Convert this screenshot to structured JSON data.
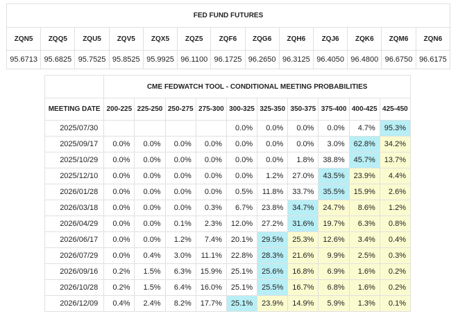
{
  "futures": {
    "title": "FED FUND FUTURES",
    "contracts": [
      "ZQN5",
      "ZQQ5",
      "ZQU5",
      "ZQV5",
      "ZQX5",
      "ZQZ5",
      "ZQF6",
      "ZQG6",
      "ZQH6",
      "ZQJ6",
      "ZQK6",
      "ZQM6",
      "ZQN6"
    ],
    "prices": [
      "95.6713",
      "95.6825",
      "95.7525",
      "95.8525",
      "95.9925",
      "96.1100",
      "96.1725",
      "96.2650",
      "96.3125",
      "96.4050",
      "96.4800",
      "96.6750",
      "96.6175"
    ]
  },
  "fedwatch": {
    "title": "CME FEDWATCH TOOL - CONDITIONAL MEETING PROBABILITIES",
    "date_header": "MEETING DATE",
    "ranges": [
      "200-225",
      "225-250",
      "250-275",
      "275-300",
      "300-325",
      "325-350",
      "350-375",
      "375-400",
      "400-425",
      "425-450"
    ],
    "rows": [
      {
        "date": "2025/07/30",
        "values": [
          "",
          "",
          "",
          "",
          "0.0%",
          "0.0%",
          "0.0%",
          "0.0%",
          "4.7%",
          "95.3%"
        ],
        "shade": [
          "p",
          "p",
          "p",
          "p",
          "p",
          "p",
          "p",
          "p",
          "p",
          "h"
        ]
      },
      {
        "date": "2025/09/17",
        "values": [
          "0.0%",
          "0.0%",
          "0.0%",
          "0.0%",
          "0.0%",
          "0.0%",
          "0.0%",
          "3.0%",
          "62.8%",
          "34.2%"
        ],
        "shade": [
          "p",
          "p",
          "p",
          "p",
          "p",
          "p",
          "p",
          "p",
          "h",
          "m"
        ]
      },
      {
        "date": "2025/10/29",
        "values": [
          "0.0%",
          "0.0%",
          "0.0%",
          "0.0%",
          "0.0%",
          "0.0%",
          "1.8%",
          "38.8%",
          "45.7%",
          "13.7%"
        ],
        "shade": [
          "p",
          "p",
          "p",
          "p",
          "p",
          "p",
          "p",
          "p",
          "h",
          "m"
        ]
      },
      {
        "date": "2025/12/10",
        "values": [
          "0.0%",
          "0.0%",
          "0.0%",
          "0.0%",
          "0.0%",
          "1.2%",
          "27.0%",
          "43.5%",
          "23.9%",
          "4.4%"
        ],
        "shade": [
          "p",
          "p",
          "p",
          "p",
          "p",
          "p",
          "p",
          "h",
          "m",
          "m"
        ]
      },
      {
        "date": "2026/01/28",
        "values": [
          "0.0%",
          "0.0%",
          "0.0%",
          "0.0%",
          "0.5%",
          "11.8%",
          "33.7%",
          "35.5%",
          "15.9%",
          "2.6%"
        ],
        "shade": [
          "p",
          "p",
          "p",
          "p",
          "p",
          "p",
          "p",
          "h",
          "m",
          "m"
        ]
      },
      {
        "date": "2026/03/18",
        "values": [
          "0.0%",
          "0.0%",
          "0.0%",
          "0.3%",
          "6.7%",
          "23.8%",
          "34.7%",
          "24.7%",
          "8.6%",
          "1.2%"
        ],
        "shade": [
          "p",
          "p",
          "p",
          "p",
          "p",
          "p",
          "h",
          "m",
          "m",
          "m"
        ]
      },
      {
        "date": "2026/04/29",
        "values": [
          "0.0%",
          "0.0%",
          "0.1%",
          "2.3%",
          "12.0%",
          "27.2%",
          "31.6%",
          "19.7%",
          "6.3%",
          "0.8%"
        ],
        "shade": [
          "p",
          "p",
          "p",
          "p",
          "p",
          "p",
          "h",
          "m",
          "m",
          "m"
        ]
      },
      {
        "date": "2026/06/17",
        "values": [
          "0.0%",
          "0.0%",
          "1.2%",
          "7.4%",
          "20.1%",
          "29.5%",
          "25.3%",
          "12.6%",
          "3.4%",
          "0.4%"
        ],
        "shade": [
          "p",
          "p",
          "p",
          "p",
          "p",
          "h",
          "m",
          "m",
          "m",
          "m"
        ]
      },
      {
        "date": "2026/07/29",
        "values": [
          "0.0%",
          "0.4%",
          "3.0%",
          "11.1%",
          "22.8%",
          "28.3%",
          "21.6%",
          "9.9%",
          "2.5%",
          "0.3%"
        ],
        "shade": [
          "p",
          "p",
          "p",
          "p",
          "p",
          "h",
          "m",
          "m",
          "m",
          "m"
        ]
      },
      {
        "date": "2026/09/16",
        "values": [
          "0.2%",
          "1.5%",
          "6.3%",
          "15.9%",
          "25.1%",
          "25.6%",
          "16.8%",
          "6.9%",
          "1.6%",
          "0.2%"
        ],
        "shade": [
          "p",
          "p",
          "p",
          "p",
          "p",
          "h",
          "m",
          "m",
          "m",
          "m"
        ]
      },
      {
        "date": "2026/10/28",
        "values": [
          "0.2%",
          "1.5%",
          "6.4%",
          "16.0%",
          "25.1%",
          "25.5%",
          "16.7%",
          "6.8%",
          "1.6%",
          "0.2%"
        ],
        "shade": [
          "p",
          "p",
          "p",
          "p",
          "p",
          "h",
          "m",
          "m",
          "m",
          "m"
        ]
      },
      {
        "date": "2026/12/09",
        "values": [
          "0.4%",
          "2.4%",
          "8.2%",
          "17.7%",
          "25.1%",
          "23.9%",
          "14.9%",
          "5.9%",
          "1.3%",
          "0.1%"
        ],
        "shade": [
          "p",
          "p",
          "p",
          "p",
          "h",
          "m",
          "m",
          "m",
          "m",
          "m"
        ]
      }
    ]
  },
  "colors": {
    "highlight": "#b8eef5",
    "secondary": "#fbfbd0",
    "border": "#e0e0e0"
  }
}
